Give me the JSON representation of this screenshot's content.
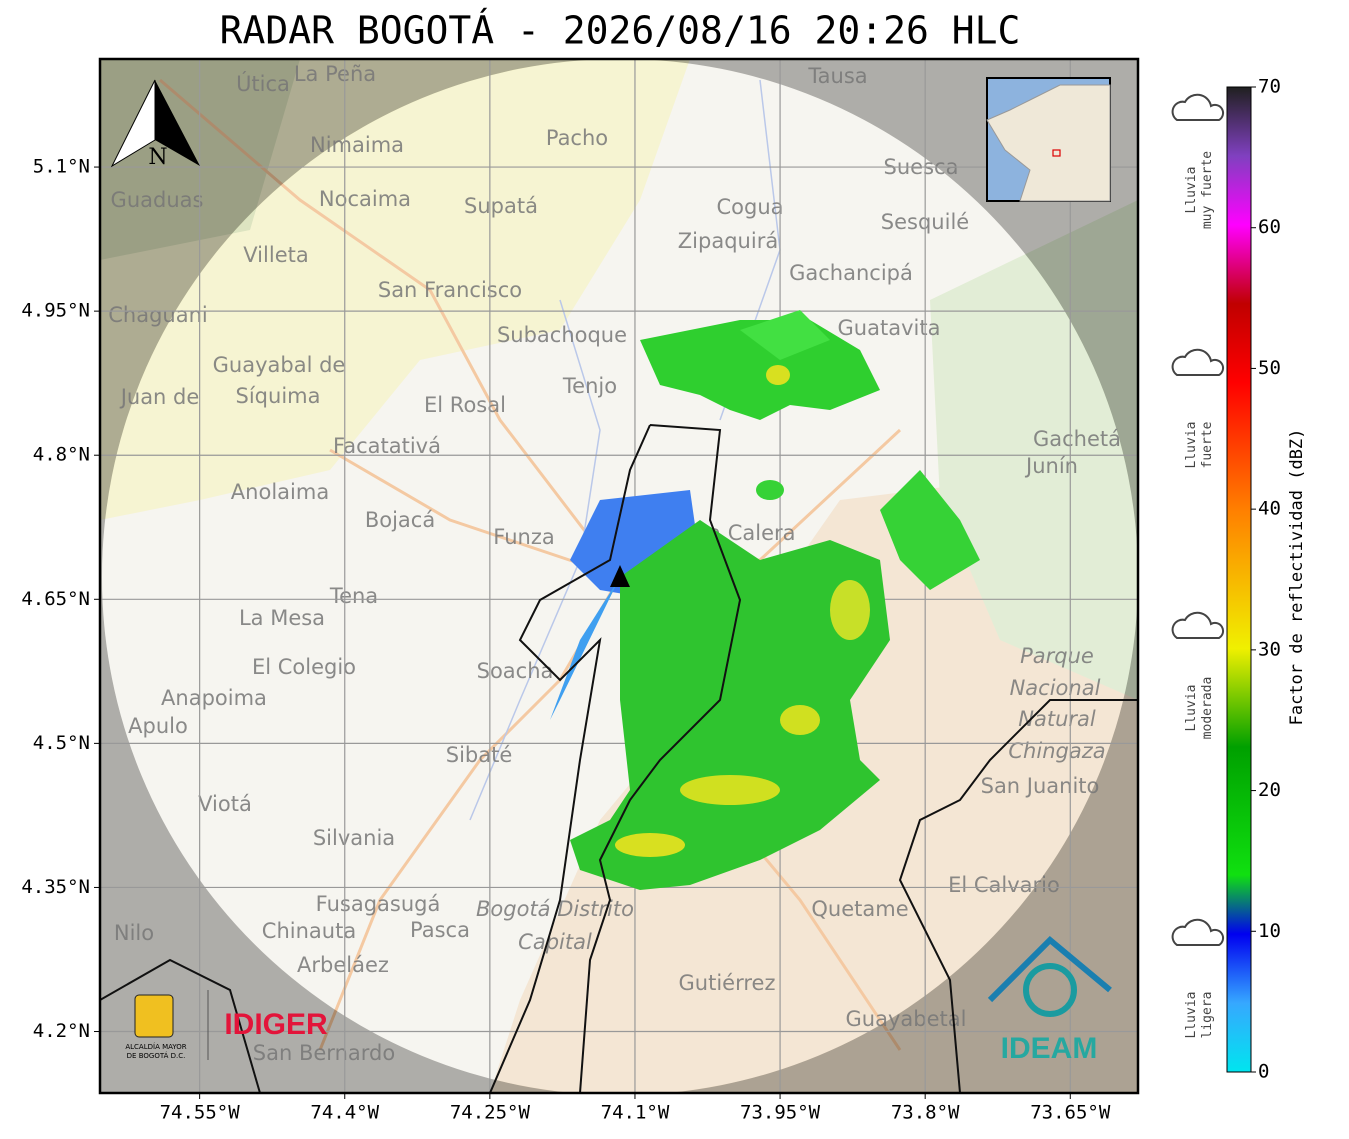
{
  "title": "RADAR BOGOTÁ - 2026/08/16 20:26 HLC",
  "north_label": "N",
  "lon_extent": [
    -74.653,
    -73.58
  ],
  "lat_extent": [
    4.136,
    5.2125
  ],
  "lon_ticks": [
    {
      "value": -74.55,
      "label": "74.55°W"
    },
    {
      "value": -74.4,
      "label": "74.4°W"
    },
    {
      "value": -74.25,
      "label": "74.25°W"
    },
    {
      "value": -74.1,
      "label": "74.1°W"
    },
    {
      "value": -73.95,
      "label": "73.95°W"
    },
    {
      "value": -73.8,
      "label": "73.8°W"
    },
    {
      "value": -73.65,
      "label": "73.65°W"
    }
  ],
  "lat_ticks": [
    {
      "value": 5.1,
      "label": "5.1°N"
    },
    {
      "value": 4.95,
      "label": "4.95°N"
    },
    {
      "value": 4.8,
      "label": "4.8°N"
    },
    {
      "value": 4.65,
      "label": "4.65°N"
    },
    {
      "value": 4.5,
      "label": "4.5°N"
    },
    {
      "value": 4.35,
      "label": "4.35°N"
    },
    {
      "value": 4.2,
      "label": "4.2°N"
    }
  ],
  "places": [
    "Útica",
    "La Peña",
    "Tausa",
    "Pacho",
    "Nimaima",
    "Guaduas",
    "Nocaima",
    "Supatá",
    "Cogua",
    "Suesca",
    "Zipaquirá",
    "Sesquilé",
    "Villeta",
    "Gachancipá",
    "San Francisco",
    "Chaguani",
    "Guatavita",
    "Subachoque",
    "Guayabal de",
    "Síquima",
    "Tenjo",
    "Juan de",
    "El Rosal",
    "Facatativá",
    "Gachetá",
    "Junín",
    "Anolaima",
    "Bojacá",
    "Funza",
    "La Calera",
    "Tena",
    "La Mesa",
    "Parque",
    "Nacional",
    "Natural",
    "Chingaza",
    "El Colegio",
    "Soacha",
    "Anapoima",
    "Apulo",
    "Sibaté",
    "San Juanito",
    "Viotá",
    "Silvania",
    "El Calvario",
    "Fusagasugá",
    "Quetame",
    "Bogotá Distrito",
    "Capital",
    "Nilo",
    "Chinauta",
    "Pasca",
    "Arbeláez",
    "Gutiérrez",
    "Guayabetal",
    "San Bernardo"
  ],
  "colorbar": {
    "label": "Factor de reflectividad (dBZ)",
    "range": [
      0,
      70
    ],
    "ticks": [
      0,
      10,
      20,
      30,
      40,
      50,
      60,
      70
    ]
  },
  "rain_classes": [
    [
      "Lluvia",
      "muy fuerte"
    ],
    [
      "Lluvia",
      "fuerte"
    ],
    [
      "Lluvia",
      "moderada"
    ],
    [
      "Lluvia",
      "ligera"
    ]
  ],
  "logos": {
    "alcaldia": [
      "ALCALDÍA MAYOR",
      "DE BOGOTÁ D.C."
    ],
    "idiger": "IDIGER",
    "ideam": "IDEAM"
  }
}
